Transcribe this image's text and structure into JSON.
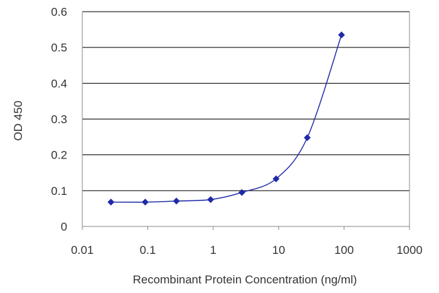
{
  "chart_data": {
    "type": "line",
    "title": "",
    "xlabel": "Recombinant Protein Concentration (ng/ml)",
    "ylabel": "OD 450",
    "xscale": "log",
    "xlim": [
      0.01,
      1000
    ],
    "ylim": [
      0,
      0.6
    ],
    "xticks": [
      0.01,
      0.1,
      1,
      10,
      100,
      1000
    ],
    "xtick_labels": [
      "0.01",
      "0.1",
      "1",
      "10",
      "100",
      "1000"
    ],
    "yticks": [
      0,
      0.1,
      0.2,
      0.3,
      0.4,
      0.5,
      0.6
    ],
    "ytick_labels": [
      "0",
      "0.1",
      "0.2",
      "0.3",
      "0.4",
      "0.5",
      "0.6"
    ],
    "grid": "horizontal",
    "legend": "none",
    "series": [
      {
        "x": [
          0.0274,
          0.0914,
          0.274,
          0.914,
          2.74,
          9.14,
          27.4,
          91.4
        ],
        "y": [
          0.068,
          0.068,
          0.071,
          0.075,
          0.095,
          0.133,
          0.248,
          0.535
        ],
        "color": "#1f2aa8",
        "marker": "diamond"
      }
    ],
    "colors": {
      "grid": "#000000",
      "axis": "#888888",
      "line": "#1f2aa8"
    }
  }
}
